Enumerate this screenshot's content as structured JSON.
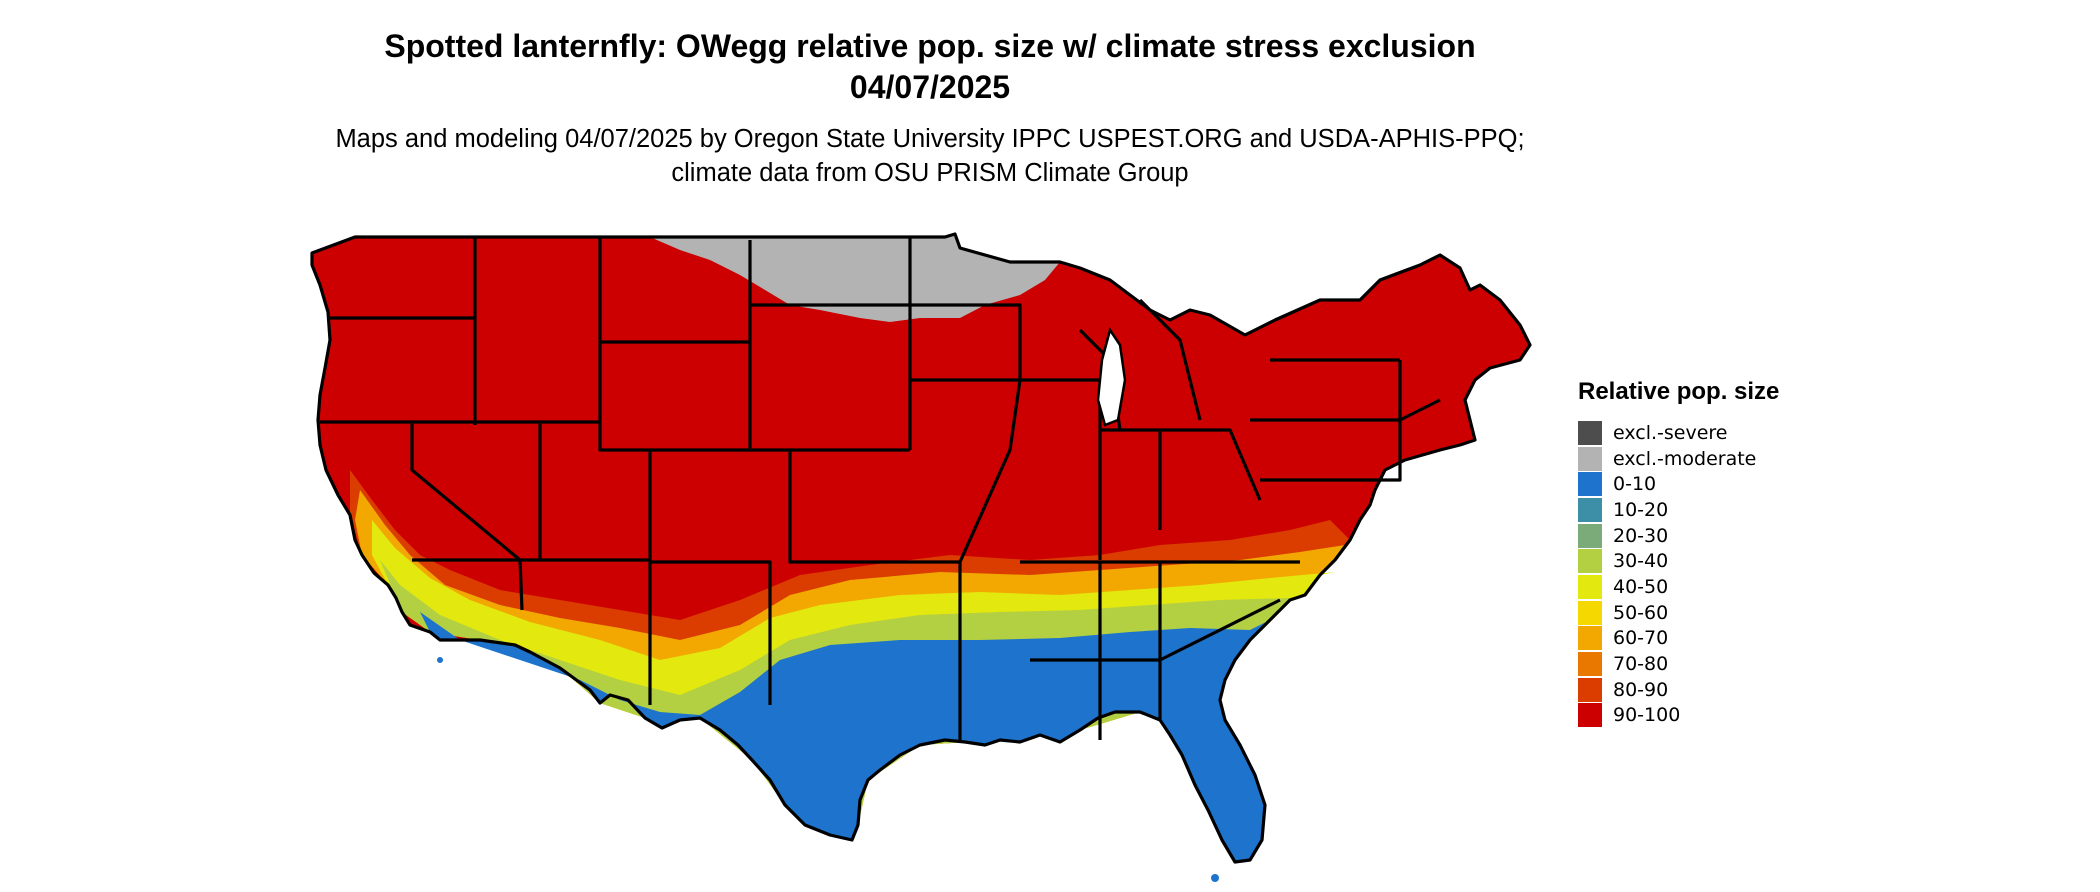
{
  "title": "Spotted lanternfly: OWegg relative pop. size w/ climate stress exclusion 04/07/2025",
  "subtitle": "Maps and modeling 04/07/2025 by Oregon State University IPPC USPEST.ORG and USDA-APHIS-PPQ; climate data from OSU PRISM Climate Group",
  "legend": {
    "title": "Relative pop. size",
    "items": [
      {
        "label": "excl.-severe",
        "color": "#4d4d4d"
      },
      {
        "label": "excl.-moderate",
        "color": "#b3b3b3"
      },
      {
        "label": "0-10",
        "color": "#1e73cc"
      },
      {
        "label": "10-20",
        "color": "#3d8fa8"
      },
      {
        "label": "20-30",
        "color": "#7aab78"
      },
      {
        "label": "30-40",
        "color": "#b3cf42"
      },
      {
        "label": "40-50",
        "color": "#e3e80f"
      },
      {
        "label": "50-60",
        "color": "#f5d800"
      },
      {
        "label": "60-70",
        "color": "#f2a800"
      },
      {
        "label": "70-80",
        "color": "#e87800"
      },
      {
        "label": "80-90",
        "color": "#db3c00"
      },
      {
        "label": "90-100",
        "color": "#cc0000"
      }
    ]
  }
}
